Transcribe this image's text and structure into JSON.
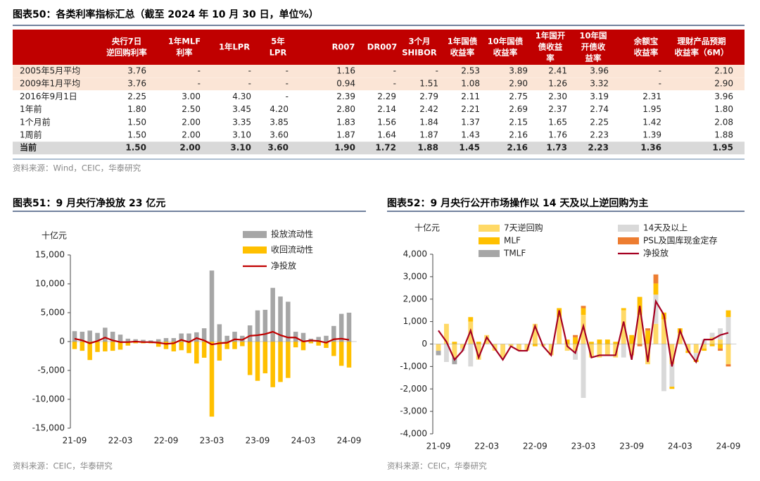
{
  "table": {
    "title": "图表50：各类利率指标汇总（截至 2024 年 10 月 30 日，单位%）",
    "headers": [
      [
        "央行7日",
        "逆回购利率"
      ],
      [
        "1年MLF",
        "利率"
      ],
      [
        "1年LPR"
      ],
      [
        "5年",
        "LPR"
      ],
      [
        "R007"
      ],
      [
        "DR007"
      ],
      [
        "3个月",
        "SHIBOR"
      ],
      [
        "1年国债",
        "收益率"
      ],
      [
        "10年国债",
        "收益率"
      ],
      [
        "1年国开",
        "债收益",
        "率"
      ],
      [
        "10年国",
        "开债收",
        "益率"
      ],
      [
        "余额宝",
        "收益率"
      ],
      [
        "理财产品预期",
        "收益率（6M）"
      ]
    ],
    "rows": [
      {
        "label": "2005年5月平均",
        "cells": [
          "3.76",
          "-",
          "-",
          "-",
          "1.16",
          "-",
          "-",
          "2.53",
          "3.89",
          "2.41",
          "3.96",
          "-",
          "2.10"
        ]
      },
      {
        "label": "2009年1月平均",
        "cells": [
          "3.76",
          "-",
          "-",
          "-",
          "0.94",
          "-",
          "1.51",
          "1.08",
          "2.90",
          "1.26",
          "3.32",
          "-",
          "2.90"
        ]
      },
      {
        "label": "2016年9月1日",
        "cells": [
          "2.25",
          "3.00",
          "4.30",
          "-",
          "2.39",
          "2.29",
          "2.79",
          "2.11",
          "2.75",
          "2.30",
          "3.19",
          "2.31",
          "3.96"
        ]
      },
      {
        "label": "1年前",
        "cells": [
          "1.80",
          "2.50",
          "3.45",
          "4.20",
          "2.80",
          "2.14",
          "2.42",
          "2.21",
          "2.69",
          "2.37",
          "2.74",
          "1.95",
          "1.80"
        ]
      },
      {
        "label": "1个月前",
        "cells": [
          "1.50",
          "2.00",
          "3.35",
          "3.85",
          "1.83",
          "1.56",
          "1.84",
          "1.37",
          "2.15",
          "1.65",
          "2.25",
          "1.42",
          "2.08"
        ]
      },
      {
        "label": "1周前",
        "cells": [
          "1.50",
          "2.00",
          "3.10",
          "3.60",
          "1.87",
          "1.64",
          "1.87",
          "1.43",
          "2.16",
          "1.76",
          "2.23",
          "1.39",
          "1.88"
        ]
      },
      {
        "label": "当前",
        "cells": [
          "1.50",
          "2.00",
          "3.10",
          "3.60",
          "1.90",
          "1.72",
          "1.88",
          "1.45",
          "2.16",
          "1.73",
          "2.23",
          "1.36",
          "1.95"
        ]
      }
    ],
    "source": "资料来源：Wind，CEIC，华泰研究"
  },
  "chart_data": [
    {
      "type": "bar",
      "title": "图表51：9 月央行净投放 23 亿元",
      "unit_label": "十亿元",
      "source": "资料来源：CEIC，华泰研究",
      "categories": [
        "21-09",
        null,
        null,
        null,
        null,
        null,
        "22-03",
        null,
        null,
        null,
        null,
        null,
        "22-09",
        null,
        null,
        null,
        null,
        null,
        "23-03",
        null,
        null,
        null,
        null,
        null,
        "23-09",
        null,
        null,
        null,
        null,
        null,
        "24-03",
        null,
        null,
        null,
        null,
        null,
        "24-09"
      ],
      "ylim": [
        -15000,
        15000
      ],
      "yticks": [
        {
          "value": -15000,
          "label": "-15,000"
        },
        {
          "value": -10000,
          "label": "-10,000"
        },
        {
          "value": -5000,
          "label": "-5,000"
        },
        0,
        {
          "value": 5000,
          "label": "5,000"
        },
        {
          "value": 10000,
          "label": "10,000"
        },
        {
          "value": 15000,
          "label": "15,000"
        }
      ],
      "series": [
        {
          "name": "投放流动性",
          "type": "bar",
          "color": "#a6a6a6",
          "values": [
            1800,
            1700,
            1900,
            1500,
            2400,
            1700,
            1200,
            500,
            400,
            300,
            200,
            400,
            600,
            600,
            1400,
            1400,
            1600,
            2300,
            12300,
            3000,
            1000,
            1700,
            1000,
            2800,
            5400,
            5500,
            9300,
            7800,
            6900,
            1700,
            1500,
            500,
            800,
            1000,
            2700,
            4800,
            5000
          ]
        },
        {
          "name": "收回流动性",
          "type": "bar",
          "color": "#ffc000",
          "values": [
            -1300,
            -1600,
            -3200,
            -1800,
            -1700,
            -1600,
            -1400,
            -700,
            -300,
            -300,
            -300,
            -900,
            -1300,
            -1700,
            -1500,
            -2000,
            -3800,
            -2800,
            -13000,
            -3300,
            -1300,
            -1300,
            -800,
            -5800,
            -6800,
            -5500,
            -7900,
            -7000,
            -6300,
            -1000,
            -1500,
            -300,
            -700,
            -1100,
            -2500,
            -4200,
            -4500
          ]
        },
        {
          "name": "净投放",
          "type": "line",
          "color": "#c00000",
          "values": [
            500,
            200,
            -300,
            100,
            700,
            200,
            -100,
            -100,
            0,
            -100,
            -100,
            -200,
            -400,
            -300,
            300,
            -100,
            600,
            200,
            -500,
            -300,
            -200,
            400,
            300,
            1000,
            1100,
            1300,
            1700,
            1100,
            700,
            700,
            0,
            200,
            100,
            -200,
            400,
            500,
            300
          ]
        }
      ]
    },
    {
      "type": "bar",
      "title": "图表52：9 月央行公开市场操作以 14 天及以上逆回购为主",
      "unit_label": "十亿元",
      "source": "资料来源：CEIC，华泰研究",
      "categories": [
        "21-09",
        null,
        null,
        null,
        null,
        null,
        "22-03",
        null,
        null,
        null,
        null,
        null,
        "22-09",
        null,
        null,
        null,
        null,
        null,
        "23-03",
        null,
        null,
        null,
        null,
        null,
        "23-09",
        null,
        null,
        null,
        null,
        null,
        "24-03",
        null,
        null,
        null,
        null,
        null,
        "24-09"
      ],
      "ylim": [
        -4000,
        4000
      ],
      "yticks": [
        {
          "value": -4000,
          "label": "-4,000"
        },
        {
          "value": -3000,
          "label": "-3,000"
        },
        {
          "value": -2000,
          "label": "-2,000"
        },
        {
          "value": -1000,
          "label": "-1,000"
        },
        0,
        {
          "value": 1000,
          "label": "1,000"
        },
        {
          "value": 2000,
          "label": "2,000"
        },
        {
          "value": 3000,
          "label": "3,000"
        },
        {
          "value": 4000,
          "label": "4,000"
        }
      ],
      "series": [
        {
          "name": "7天逆回购",
          "type": "bar",
          "color": "#ffd966",
          "values": [
            -300,
            900,
            -600,
            -200,
            1000,
            -700,
            400,
            -300,
            -600,
            -100,
            -300,
            -300,
            900,
            -100,
            -500,
            1200,
            -300,
            -300,
            1300,
            -600,
            -600,
            -500,
            -600,
            1500,
            -500,
            1300,
            -900,
            900,
            1100,
            -900,
            500,
            -300,
            -400,
            -200,
            300,
            200,
            -900
          ]
        },
        {
          "name": "14天及以上",
          "type": "bar",
          "color": "#d9d9d9",
          "values": [
            0,
            -800,
            0,
            -100,
            -1000,
            0,
            0,
            0,
            0,
            0,
            0,
            0,
            0,
            0,
            0,
            0,
            0,
            -400,
            -2400,
            0,
            0,
            0,
            0,
            -600,
            0,
            0,
            0,
            1300,
            -2100,
            -1000,
            0,
            0,
            -300,
            200,
            200,
            500,
            1200
          ]
        },
        {
          "name": "MLF",
          "type": "bar",
          "color": "#ffc000",
          "values": [
            0,
            0,
            100,
            0,
            200,
            100,
            0,
            0,
            0,
            0,
            0,
            0,
            -100,
            0,
            0,
            400,
            200,
            300,
            300,
            100,
            200,
            200,
            100,
            100,
            400,
            800,
            600,
            500,
            300,
            -100,
            200,
            -100,
            -100,
            -100,
            -100,
            -200,
            300
          ]
        },
        {
          "name": "PSL及国库现金定存",
          "type": "bar",
          "color": "#ed7d31",
          "values": [
            0,
            0,
            0,
            0,
            0,
            0,
            0,
            0,
            0,
            0,
            0,
            0,
            0,
            0,
            0,
            0,
            0,
            100,
            100,
            0,
            0,
            0,
            0,
            0,
            0,
            -100,
            100,
            400,
            0,
            0,
            0,
            0,
            0,
            0,
            0,
            -100,
            -100
          ]
        },
        {
          "name": "TMLF",
          "type": "bar",
          "color": "#a6a6a6",
          "values": [
            -200,
            0,
            -300,
            0,
            0,
            0,
            0,
            0,
            0,
            0,
            0,
            0,
            0,
            0,
            0,
            0,
            0,
            0,
            0,
            0,
            0,
            0,
            0,
            0,
            0,
            0,
            0,
            0,
            0,
            0,
            0,
            0,
            0,
            0,
            0,
            0,
            0
          ]
        },
        {
          "name": "净投放",
          "type": "line",
          "color": "#a50021",
          "values": [
            600,
            100,
            -700,
            -300,
            600,
            -600,
            300,
            -200,
            -700,
            -100,
            -300,
            -300,
            800,
            -100,
            -500,
            1500,
            -100,
            -400,
            800,
            -600,
            -500,
            -500,
            -500,
            1000,
            -700,
            1700,
            -800,
            1900,
            1300,
            -1000,
            600,
            -300,
            -800,
            200,
            200,
            400,
            500
          ]
        }
      ]
    }
  ]
}
